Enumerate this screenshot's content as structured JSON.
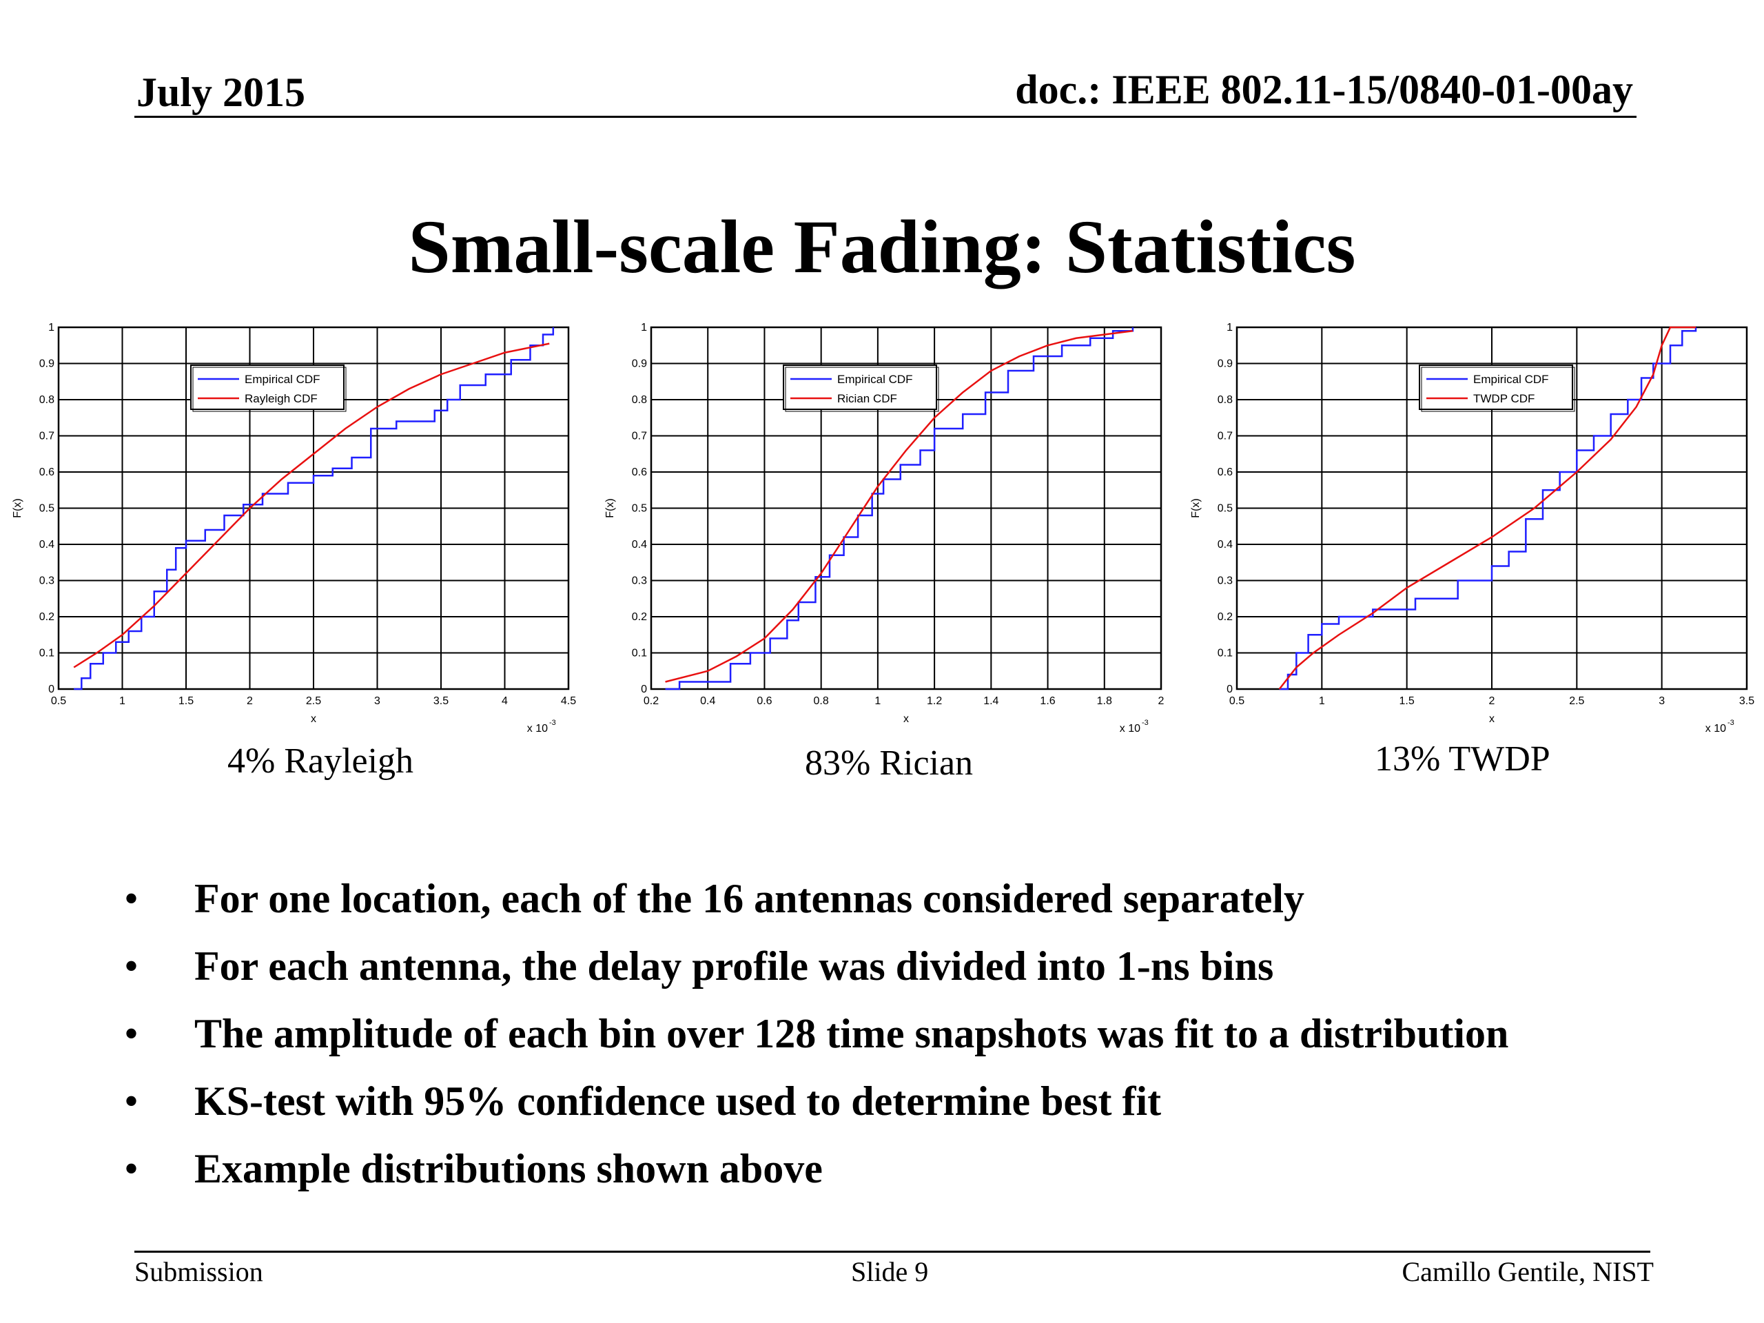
{
  "header": {
    "date": "July 2015",
    "doc": "doc.: IEEE 802.11-15/0840-01-00ay"
  },
  "title": "Small-scale Fading: Statistics",
  "colors": {
    "empirical": "#1f1fff",
    "fit": "#e81010",
    "grid": "#000000"
  },
  "chart_data": [
    {
      "type": "line",
      "caption": "4% Rayleigh",
      "xlabel": "x",
      "ylabel": "F(x)",
      "x_multiplier": "x 10",
      "exp": "-3",
      "xlim": [
        0.5,
        4.5
      ],
      "ylim": [
        0,
        1
      ],
      "xticks": [
        0.5,
        1,
        1.5,
        2,
        2.5,
        3,
        3.5,
        4,
        4.5
      ],
      "yticks": [
        0,
        0.1,
        0.2,
        0.3,
        0.4,
        0.5,
        0.6,
        0.7,
        0.8,
        0.9,
        1
      ],
      "legend_position": "top-left",
      "series": [
        {
          "name": "Empirical CDF",
          "color": "#1f1fff",
          "step": true,
          "points": [
            [
              0.62,
              0
            ],
            [
              0.68,
              0.03
            ],
            [
              0.75,
              0.07
            ],
            [
              0.85,
              0.1
            ],
            [
              0.95,
              0.13
            ],
            [
              1.05,
              0.16
            ],
            [
              1.15,
              0.2
            ],
            [
              1.25,
              0.27
            ],
            [
              1.35,
              0.33
            ],
            [
              1.42,
              0.39
            ],
            [
              1.5,
              0.41
            ],
            [
              1.65,
              0.44
            ],
            [
              1.8,
              0.48
            ],
            [
              1.95,
              0.51
            ],
            [
              2.1,
              0.54
            ],
            [
              2.3,
              0.57
            ],
            [
              2.5,
              0.59
            ],
            [
              2.65,
              0.61
            ],
            [
              2.8,
              0.64
            ],
            [
              2.95,
              0.72
            ],
            [
              3.15,
              0.74
            ],
            [
              3.45,
              0.77
            ],
            [
              3.55,
              0.8
            ],
            [
              3.65,
              0.84
            ],
            [
              3.85,
              0.87
            ],
            [
              4.05,
              0.91
            ],
            [
              4.2,
              0.95
            ],
            [
              4.3,
              0.98
            ],
            [
              4.38,
              1
            ]
          ]
        },
        {
          "name": "Rayleigh CDF",
          "color": "#e81010",
          "step": false,
          "points": [
            [
              0.62,
              0.06
            ],
            [
              0.8,
              0.1
            ],
            [
              1.0,
              0.15
            ],
            [
              1.25,
              0.23
            ],
            [
              1.5,
              0.32
            ],
            [
              1.75,
              0.41
            ],
            [
              2.0,
              0.5
            ],
            [
              2.25,
              0.58
            ],
            [
              2.5,
              0.65
            ],
            [
              2.75,
              0.72
            ],
            [
              3.0,
              0.78
            ],
            [
              3.25,
              0.83
            ],
            [
              3.5,
              0.87
            ],
            [
              3.75,
              0.9
            ],
            [
              4.0,
              0.93
            ],
            [
              4.35,
              0.955
            ]
          ]
        }
      ]
    },
    {
      "type": "line",
      "caption": "83% Rician",
      "xlabel": "x",
      "ylabel": "F(x)",
      "x_multiplier": "x 10",
      "exp": "-3",
      "xlim": [
        0.2,
        2
      ],
      "ylim": [
        0,
        1
      ],
      "xticks": [
        0.2,
        0.4,
        0.6,
        0.8,
        1,
        1.2,
        1.4,
        1.6,
        1.8,
        2
      ],
      "yticks": [
        0,
        0.1,
        0.2,
        0.3,
        0.4,
        0.5,
        0.6,
        0.7,
        0.8,
        0.9,
        1
      ],
      "legend_position": "top-left",
      "series": [
        {
          "name": "Empirical CDF",
          "color": "#1f1fff",
          "step": true,
          "points": [
            [
              0.25,
              0
            ],
            [
              0.3,
              0.02
            ],
            [
              0.42,
              0.02
            ],
            [
              0.48,
              0.07
            ],
            [
              0.55,
              0.1
            ],
            [
              0.62,
              0.14
            ],
            [
              0.68,
              0.19
            ],
            [
              0.72,
              0.24
            ],
            [
              0.78,
              0.31
            ],
            [
              0.83,
              0.37
            ],
            [
              0.88,
              0.42
            ],
            [
              0.93,
              0.48
            ],
            [
              0.98,
              0.54
            ],
            [
              1.02,
              0.58
            ],
            [
              1.08,
              0.62
            ],
            [
              1.15,
              0.66
            ],
            [
              1.2,
              0.72
            ],
            [
              1.3,
              0.76
            ],
            [
              1.38,
              0.82
            ],
            [
              1.46,
              0.88
            ],
            [
              1.55,
              0.92
            ],
            [
              1.65,
              0.95
            ],
            [
              1.75,
              0.97
            ],
            [
              1.83,
              0.99
            ],
            [
              1.9,
              1
            ]
          ]
        },
        {
          "name": "Rician CDF",
          "color": "#e81010",
          "step": false,
          "points": [
            [
              0.25,
              0.02
            ],
            [
              0.4,
              0.05
            ],
            [
              0.5,
              0.09
            ],
            [
              0.6,
              0.14
            ],
            [
              0.7,
              0.22
            ],
            [
              0.8,
              0.32
            ],
            [
              0.9,
              0.44
            ],
            [
              1.0,
              0.56
            ],
            [
              1.1,
              0.66
            ],
            [
              1.2,
              0.75
            ],
            [
              1.3,
              0.82
            ],
            [
              1.4,
              0.88
            ],
            [
              1.5,
              0.92
            ],
            [
              1.6,
              0.95
            ],
            [
              1.7,
              0.97
            ],
            [
              1.8,
              0.98
            ],
            [
              1.9,
              0.99
            ]
          ]
        }
      ]
    },
    {
      "type": "line",
      "caption": "13% TWDP",
      "xlabel": "x",
      "ylabel": "F(x)",
      "x_multiplier": "x 10",
      "exp": "-3",
      "xlim": [
        0.5,
        3.5
      ],
      "ylim": [
        0,
        1
      ],
      "xticks": [
        0.5,
        1,
        1.5,
        2,
        2.5,
        3,
        3.5
      ],
      "yticks": [
        0,
        0.1,
        0.2,
        0.3,
        0.4,
        0.5,
        0.6,
        0.7,
        0.8,
        0.9,
        1
      ],
      "legend_position": "top-center",
      "series": [
        {
          "name": "Empirical CDF",
          "color": "#1f1fff",
          "step": true,
          "points": [
            [
              0.75,
              0
            ],
            [
              0.8,
              0.04
            ],
            [
              0.85,
              0.1
            ],
            [
              0.92,
              0.15
            ],
            [
              1.0,
              0.18
            ],
            [
              1.1,
              0.2
            ],
            [
              1.3,
              0.22
            ],
            [
              1.55,
              0.25
            ],
            [
              1.8,
              0.3
            ],
            [
              2.0,
              0.34
            ],
            [
              2.1,
              0.38
            ],
            [
              2.2,
              0.47
            ],
            [
              2.3,
              0.55
            ],
            [
              2.4,
              0.6
            ],
            [
              2.5,
              0.66
            ],
            [
              2.6,
              0.7
            ],
            [
              2.7,
              0.76
            ],
            [
              2.8,
              0.8
            ],
            [
              2.88,
              0.86
            ],
            [
              2.95,
              0.9
            ],
            [
              3.05,
              0.95
            ],
            [
              3.12,
              0.99
            ],
            [
              3.2,
              1
            ]
          ]
        },
        {
          "name": "TWDP CDF",
          "color": "#e81010",
          "step": false,
          "points": [
            [
              0.75,
              0
            ],
            [
              0.85,
              0.06
            ],
            [
              0.95,
              0.1
            ],
            [
              1.1,
              0.15
            ],
            [
              1.3,
              0.21
            ],
            [
              1.5,
              0.28
            ],
            [
              1.75,
              0.35
            ],
            [
              2.0,
              0.42
            ],
            [
              2.25,
              0.5
            ],
            [
              2.5,
              0.6
            ],
            [
              2.7,
              0.69
            ],
            [
              2.85,
              0.78
            ],
            [
              2.95,
              0.87
            ],
            [
              3.0,
              0.95
            ],
            [
              3.05,
              1
            ],
            [
              3.2,
              1
            ]
          ]
        }
      ]
    }
  ],
  "bullets": {
    "marker": "•",
    "items": [
      "For one location, each of the 16 antennas considered separately",
      "For each antenna, the delay profile was divided into 1-ns bins",
      "The amplitude of each bin over 128 time snapshots was fit to a distribution",
      "KS-test with 95% confidence used to determine best fit",
      "Example distributions shown above"
    ]
  },
  "footer": {
    "left": "Submission",
    "center": "Slide 9",
    "right": "Camillo Gentile, NIST"
  }
}
